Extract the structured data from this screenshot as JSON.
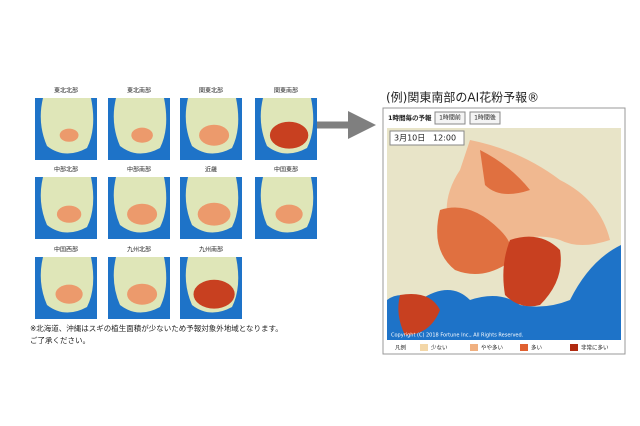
{
  "regions": [
    "東北北部",
    "東北南部",
    "関東北部",
    "関東南部",
    "中部北部",
    "中部南部",
    "近畿",
    "中国東部",
    "中国西部",
    "九州北部",
    "九州南部"
  ],
  "note": [
    "※北海道、沖縄はスギの植生面積が少ないため予報対象外地域となります。",
    "ご了承ください。"
  ],
  "example": {
    "title": "(例)関東南部のAI花粉予報®",
    "toolbar": {
      "label": "1時間毎の予報",
      "prev": "1時間前",
      "next": "1時間後"
    },
    "time": {
      "date": "3月10日",
      "clock": "12:00"
    },
    "copyright": "Copyright (C) 2018 Fortune Inc., All Rights Reserved.",
    "legend": {
      "title": "凡例",
      "items": [
        "少ない",
        "やや多い",
        "多い",
        "非常に多い"
      ]
    }
  }
}
